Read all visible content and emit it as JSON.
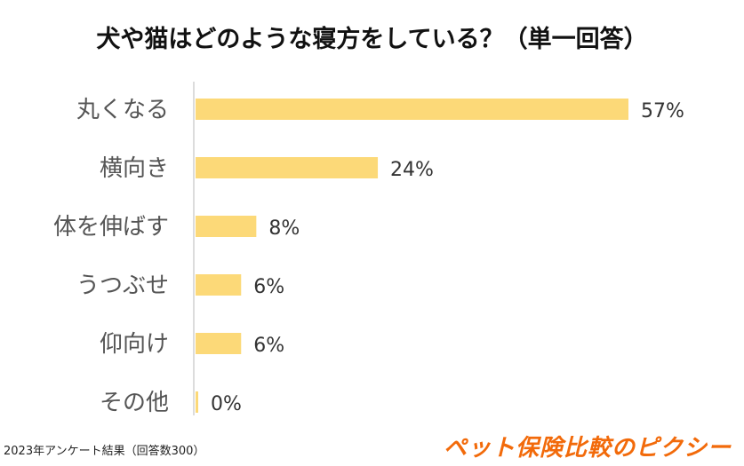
{
  "chart_data": {
    "type": "bar",
    "orientation": "horizontal",
    "title": "犬や猫はどのような寝方をしている？（単一回答）",
    "categories": [
      "丸くなる",
      "横向き",
      "体を伸ばす",
      "うつぶせ",
      "仰向け",
      "その他"
    ],
    "values": [
      57,
      24,
      8,
      6,
      6,
      0
    ],
    "value_labels": [
      "57%",
      "24%",
      "8%",
      "6%",
      "6%",
      "0%"
    ],
    "unit": "%",
    "xlim": [
      0,
      57
    ],
    "grid": false,
    "legend": "none",
    "bar_color": "#fcd978"
  },
  "footnote": "2023年アンケート結果（回答数300）",
  "brand": "ペット保険比較のピクシー"
}
